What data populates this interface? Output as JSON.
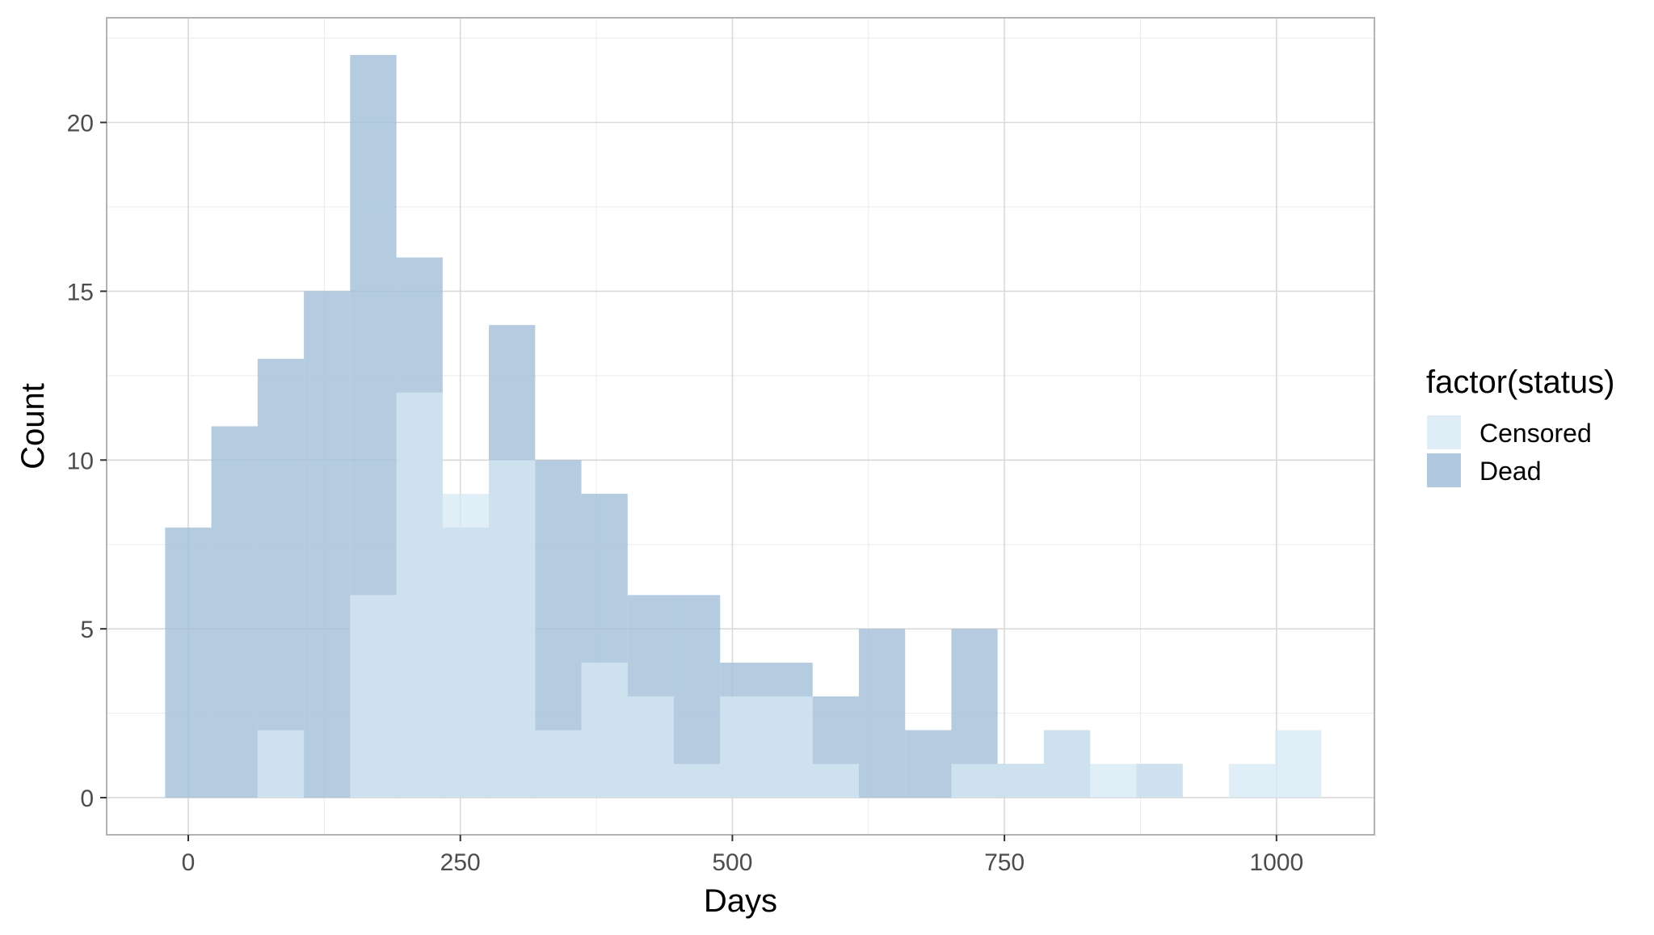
{
  "chart_data": {
    "type": "bar",
    "subtype": "overlapping-histogram",
    "xlabel": "Days",
    "ylabel": "Count",
    "xlim": [
      -75,
      1090
    ],
    "ylim": [
      -1.1,
      23.1
    ],
    "x_ticks": [
      0,
      250,
      500,
      750,
      1000
    ],
    "y_ticks": [
      0,
      5,
      10,
      15,
      20
    ],
    "grid": true,
    "legend_position": "right",
    "legend_title": "factor(status)",
    "bin_width": 42.5,
    "series": [
      {
        "name": "Dead",
        "color": "#a3bfd9",
        "bins": [
          {
            "x0": -21.25,
            "x1": 21.25,
            "count": 8
          },
          {
            "x0": 21.25,
            "x1": 63.75,
            "count": 11
          },
          {
            "x0": 63.75,
            "x1": 106.25,
            "count": 13
          },
          {
            "x0": 106.25,
            "x1": 148.75,
            "count": 15
          },
          {
            "x0": 148.75,
            "x1": 191.25,
            "count": 22
          },
          {
            "x0": 191.25,
            "x1": 233.75,
            "count": 16
          },
          {
            "x0": 233.75,
            "x1": 276.25,
            "count": 8
          },
          {
            "x0": 276.25,
            "x1": 318.75,
            "count": 14
          },
          {
            "x0": 318.75,
            "x1": 361.25,
            "count": 10
          },
          {
            "x0": 361.25,
            "x1": 403.75,
            "count": 9
          },
          {
            "x0": 403.75,
            "x1": 446.25,
            "count": 6
          },
          {
            "x0": 446.25,
            "x1": 488.75,
            "count": 6
          },
          {
            "x0": 488.75,
            "x1": 531.25,
            "count": 4
          },
          {
            "x0": 531.25,
            "x1": 573.75,
            "count": 4
          },
          {
            "x0": 573.75,
            "x1": 616.25,
            "count": 3
          },
          {
            "x0": 616.25,
            "x1": 658.75,
            "count": 5
          },
          {
            "x0": 658.75,
            "x1": 701.25,
            "count": 2
          },
          {
            "x0": 701.25,
            "x1": 743.75,
            "count": 5
          },
          {
            "x0": 743.75,
            "x1": 786.25,
            "count": 1
          },
          {
            "x0": 786.25,
            "x1": 828.75,
            "count": 2
          },
          {
            "x0": 828.75,
            "x1": 871.25,
            "count": 0
          },
          {
            "x0": 871.25,
            "x1": 913.75,
            "count": 1
          },
          {
            "x0": 913.75,
            "x1": 956.25,
            "count": 0
          },
          {
            "x0": 956.25,
            "x1": 998.75,
            "count": 0
          },
          {
            "x0": 998.75,
            "x1": 1041.25,
            "count": 0
          }
        ]
      },
      {
        "name": "Censored",
        "color": "#d6e8f4",
        "bins": [
          {
            "x0": -21.25,
            "x1": 21.25,
            "count": 0
          },
          {
            "x0": 21.25,
            "x1": 63.75,
            "count": 0
          },
          {
            "x0": 63.75,
            "x1": 106.25,
            "count": 2
          },
          {
            "x0": 106.25,
            "x1": 148.75,
            "count": 0
          },
          {
            "x0": 148.75,
            "x1": 191.25,
            "count": 6
          },
          {
            "x0": 191.25,
            "x1": 233.75,
            "count": 12
          },
          {
            "x0": 233.75,
            "x1": 276.25,
            "count": 9
          },
          {
            "x0": 276.25,
            "x1": 318.75,
            "count": 10
          },
          {
            "x0": 318.75,
            "x1": 361.25,
            "count": 2
          },
          {
            "x0": 361.25,
            "x1": 403.75,
            "count": 4
          },
          {
            "x0": 403.75,
            "x1": 446.25,
            "count": 3
          },
          {
            "x0": 446.25,
            "x1": 488.75,
            "count": 1
          },
          {
            "x0": 488.75,
            "x1": 531.25,
            "count": 3
          },
          {
            "x0": 531.25,
            "x1": 573.75,
            "count": 3
          },
          {
            "x0": 573.75,
            "x1": 616.25,
            "count": 1
          },
          {
            "x0": 616.25,
            "x1": 658.75,
            "count": 0
          },
          {
            "x0": 658.75,
            "x1": 701.25,
            "count": 0
          },
          {
            "x0": 701.25,
            "x1": 743.75,
            "count": 1
          },
          {
            "x0": 743.75,
            "x1": 786.25,
            "count": 1
          },
          {
            "x0": 786.25,
            "x1": 828.75,
            "count": 2
          },
          {
            "x0": 828.75,
            "x1": 871.25,
            "count": 1
          },
          {
            "x0": 871.25,
            "x1": 913.75,
            "count": 1
          },
          {
            "x0": 913.75,
            "x1": 956.25,
            "count": 0
          },
          {
            "x0": 956.25,
            "x1": 998.75,
            "count": 1
          },
          {
            "x0": 998.75,
            "x1": 1041.25,
            "count": 2
          }
        ]
      }
    ],
    "legend": [
      {
        "label": "Censored",
        "color": "#d6e8f4"
      },
      {
        "label": "Dead",
        "color": "#a3bfd9"
      }
    ]
  }
}
